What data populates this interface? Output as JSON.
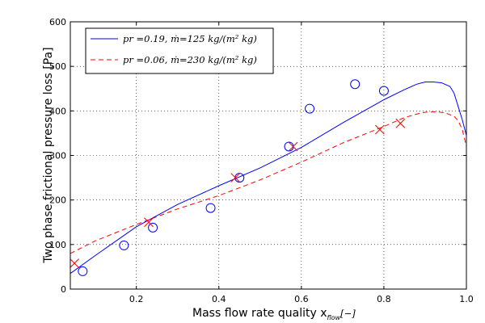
{
  "chart_data": {
    "type": "scatter",
    "xlabel_main": "Mass flow rate quality x",
    "xlabel_sub": "flow",
    "xlabel_unit": "[−]",
    "ylabel": "Two phase frictional pressure loss [Pa]",
    "xlim": [
      0.04,
      1.0
    ],
    "ylim": [
      0,
      600
    ],
    "xticks": [
      0.2,
      0.4,
      0.6,
      0.8,
      1.0
    ],
    "xtick_labels": [
      "0.2",
      "0.4",
      "0.6",
      "0.8",
      "1.0"
    ],
    "yticks": [
      0,
      100,
      200,
      300,
      400,
      500,
      600
    ],
    "ytick_labels": [
      "0",
      "100",
      "200",
      "300",
      "400",
      "500",
      "600"
    ],
    "grid": true,
    "legend_position": "top-left",
    "series": [
      {
        "name": "p_r = 0.19, ṁ = 125 kg/(m² kg)",
        "legend_label": "pr =0.19, ṁ=125 kg/(m² kg)",
        "color": "#0000ff",
        "line_style": "solid",
        "marker": "circle",
        "curve": {
          "x": [
            0.04,
            0.1,
            0.2,
            0.3,
            0.4,
            0.5,
            0.6,
            0.7,
            0.8,
            0.85,
            0.88,
            0.9,
            0.92,
            0.94,
            0.96,
            0.97,
            0.98,
            0.99,
            1.0
          ],
          "y": [
            35,
            75,
            140,
            190,
            232,
            272,
            318,
            373,
            425,
            448,
            460,
            465,
            465,
            463,
            455,
            440,
            410,
            380,
            345
          ]
        },
        "points": {
          "x": [
            0.07,
            0.17,
            0.24,
            0.38,
            0.45,
            0.57,
            0.62,
            0.73,
            0.8
          ],
          "y": [
            40,
            98,
            138,
            182,
            250,
            320,
            405,
            460,
            445
          ]
        }
      },
      {
        "name": "p_r = 0.06, ṁ = 230 kg/(m² kg)",
        "legend_label": "pr =0.06, ṁ=230 kg/(m² kg)",
        "color": "#ff0000",
        "line_style": "dashed",
        "marker": "x",
        "curve": {
          "x": [
            0.04,
            0.1,
            0.2,
            0.3,
            0.4,
            0.5,
            0.6,
            0.7,
            0.8,
            0.85,
            0.88,
            0.9,
            0.93,
            0.95,
            0.97,
            0.98,
            0.99,
            1.0
          ],
          "y": [
            80,
            108,
            145,
            180,
            210,
            245,
            285,
            328,
            365,
            385,
            393,
            397,
            398,
            395,
            388,
            378,
            358,
            320
          ]
        },
        "points": {
          "x": [
            0.05,
            0.23,
            0.44,
            0.58,
            0.79,
            0.84
          ],
          "y": [
            58,
            150,
            250,
            320,
            358,
            372
          ]
        }
      }
    ]
  }
}
